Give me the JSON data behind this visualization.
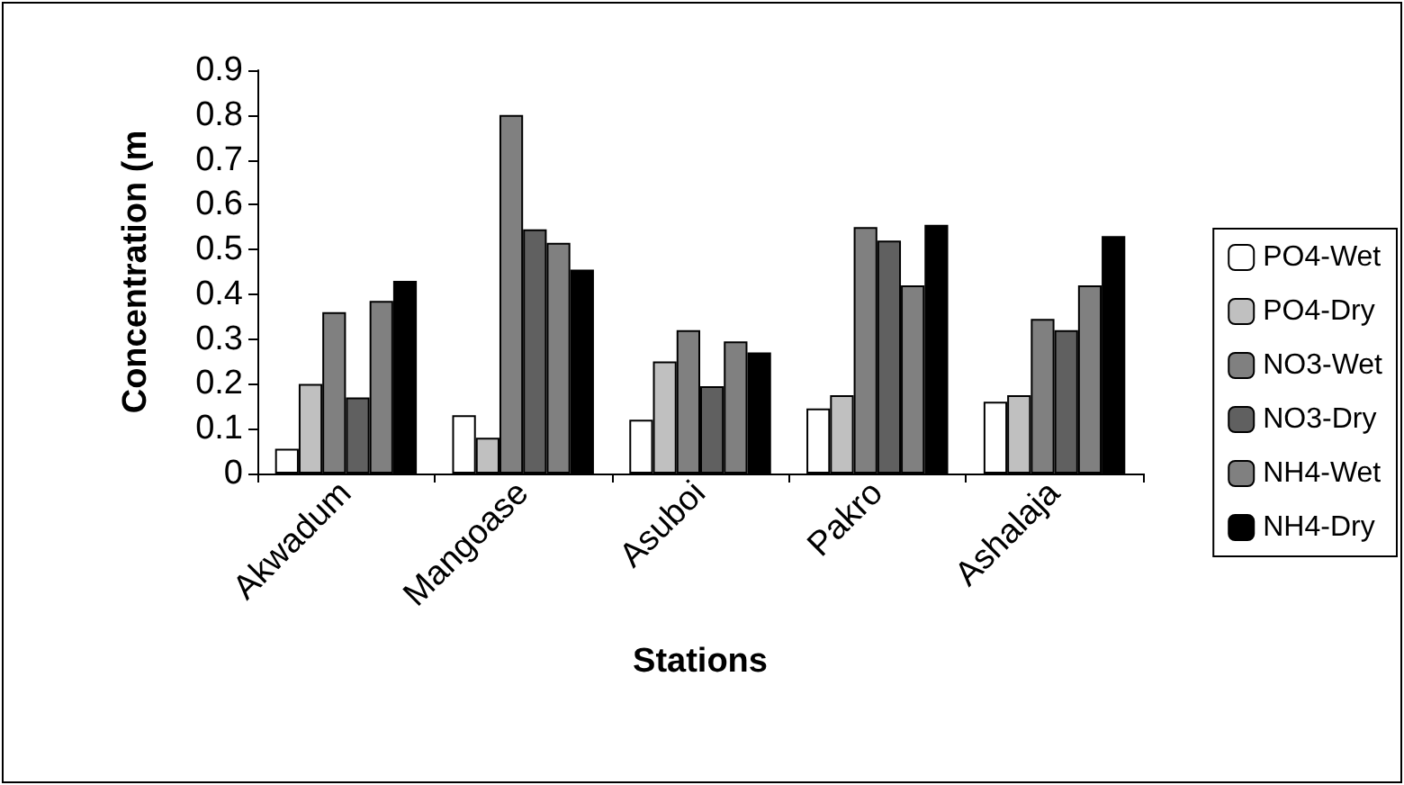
{
  "chart_data": {
    "type": "bar",
    "xlabel": "Stations",
    "ylabel": "Concentration (m",
    "categories": [
      "Akwadum",
      "Mangoase",
      "Asuboi",
      "Pakro",
      "Ashalaja"
    ],
    "series": [
      {
        "name": "PO4-Wet",
        "color": "#ffffff",
        "values": [
          0.055,
          0.13,
          0.12,
          0.145,
          0.16
        ]
      },
      {
        "name": "PO4-Dry",
        "color": "#c0c0c0",
        "values": [
          0.2,
          0.08,
          0.25,
          0.175,
          0.175
        ]
      },
      {
        "name": "NO3-Wet",
        "color": "#808080",
        "values": [
          0.36,
          0.8,
          0.32,
          0.55,
          0.345
        ]
      },
      {
        "name": "NO3-Dry",
        "color": "#606060",
        "values": [
          0.17,
          0.545,
          0.195,
          0.52,
          0.32
        ]
      },
      {
        "name": "NH4-Wet",
        "color": "#808080",
        "values": [
          0.385,
          0.515,
          0.295,
          0.42,
          0.42
        ]
      },
      {
        "name": "NH4-Dry",
        "color": "#000000",
        "values": [
          0.43,
          0.455,
          0.27,
          0.555,
          0.53
        ]
      }
    ],
    "ylim": [
      0,
      0.9
    ],
    "yticks": [
      0,
      0.1,
      0.2,
      0.3,
      0.4,
      0.5,
      0.6,
      0.7,
      0.8,
      0.9
    ],
    "grid": false,
    "legend": "right"
  }
}
